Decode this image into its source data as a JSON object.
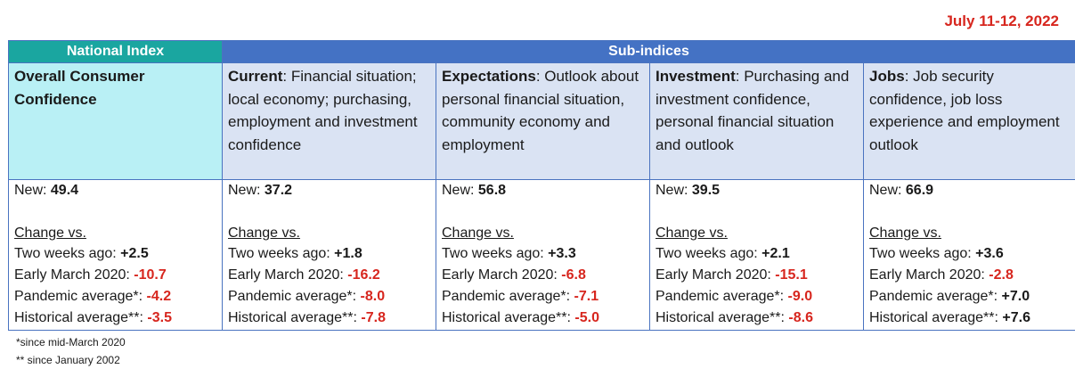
{
  "date": "July 11-12, 2022",
  "headers": {
    "national": "National Index",
    "sub": "Sub-indices"
  },
  "columns": [
    {
      "title": "Overall Consumer Confidence",
      "desc": "",
      "new": "49.4",
      "two_weeks": "+2.5",
      "two_weeks_color": "black",
      "early_march": "-10.7",
      "early_march_color": "red",
      "pandemic": "-4.2",
      "pandemic_color": "red",
      "historical": "-3.5",
      "historical_color": "red"
    },
    {
      "title": "Current",
      "desc": ":  Financial situation; local economy; purchasing, employment and investment confidence",
      "new": "37.2",
      "two_weeks": "+1.8",
      "two_weeks_color": "black",
      "early_march": "-16.2",
      "early_march_color": "red",
      "pandemic": "-8.0",
      "pandemic_color": "red",
      "historical": "-7.8",
      "historical_color": "red"
    },
    {
      "title": "Expectations",
      "desc": ":  Outlook about personal financial situation, community economy and employment",
      "new": "56.8",
      "two_weeks": "+3.3",
      "two_weeks_color": "black",
      "early_march": "-6.8",
      "early_march_color": "red",
      "pandemic": "-7.1",
      "pandemic_color": "red",
      "historical": "-5.0",
      "historical_color": "red"
    },
    {
      "title": "Investment",
      "desc": ": Purchasing and investment confidence, personal financial situation and outlook",
      "new": "39.5",
      "two_weeks": "+2.1",
      "two_weeks_color": "black",
      "early_march": "-15.1",
      "early_march_color": "red",
      "pandemic": "-9.0",
      "pandemic_color": "red",
      "historical": "-8.6",
      "historical_color": "red"
    },
    {
      "title": "Jobs",
      "desc": ": Job security confidence, job loss experience  and employment outlook",
      "new": "66.9",
      "two_weeks": "+3.6",
      "two_weeks_color": "black",
      "early_march": "-2.8",
      "early_march_color": "red",
      "pandemic": "+7.0",
      "pandemic_color": "black",
      "historical": "+7.6",
      "historical_color": "black"
    }
  ],
  "labels": {
    "new": "New: ",
    "change": "Change vs.",
    "two_weeks": "Two weeks ago: ",
    "early_march": "Early March 2020:  ",
    "pandemic": "Pandemic average*: ",
    "historical": "Historical average**: "
  },
  "footnotes": [
    "*since mid-March 2020",
    "** since January 2002"
  ]
}
